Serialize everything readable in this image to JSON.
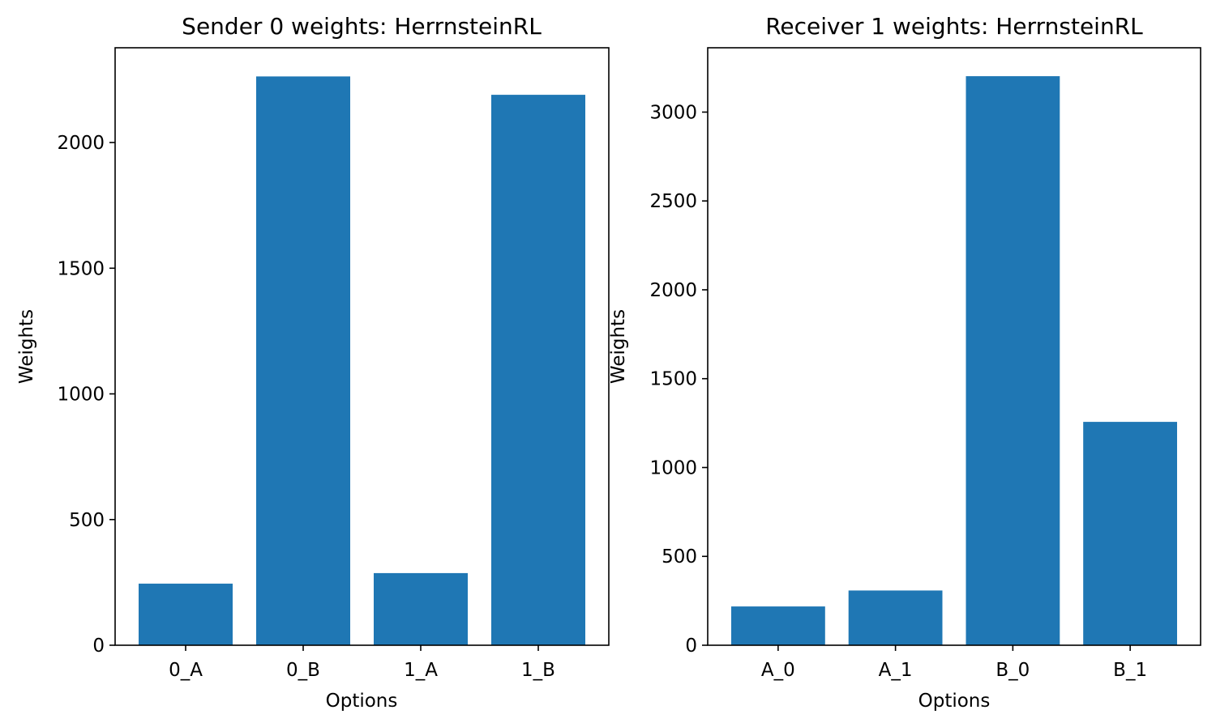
{
  "figure": {
    "background": "#ffffff",
    "bar_color": "#1f77b4"
  },
  "chart_data": [
    {
      "type": "bar",
      "title": "Sender 0 weights: HerrnsteinRL",
      "xlabel": "Options",
      "ylabel": "Weights",
      "categories": [
        "0_A",
        "0_B",
        "1_A",
        "1_B"
      ],
      "values": [
        245,
        2263,
        287,
        2190
      ],
      "ylim": [
        0,
        2377
      ],
      "yticks": [
        0,
        500,
        1000,
        1500,
        2000
      ],
      "grid": false,
      "legend": "none"
    },
    {
      "type": "bar",
      "title": "Receiver 1 weights: HerrnsteinRL",
      "xlabel": "Options",
      "ylabel": "Weights",
      "categories": [
        "A_0",
        "A_1",
        "B_0",
        "B_1"
      ],
      "values": [
        218,
        308,
        3202,
        1257
      ],
      "ylim": [
        0,
        3362
      ],
      "yticks": [
        0,
        500,
        1000,
        1500,
        2000,
        2500,
        3000
      ],
      "grid": false,
      "legend": "none"
    }
  ]
}
